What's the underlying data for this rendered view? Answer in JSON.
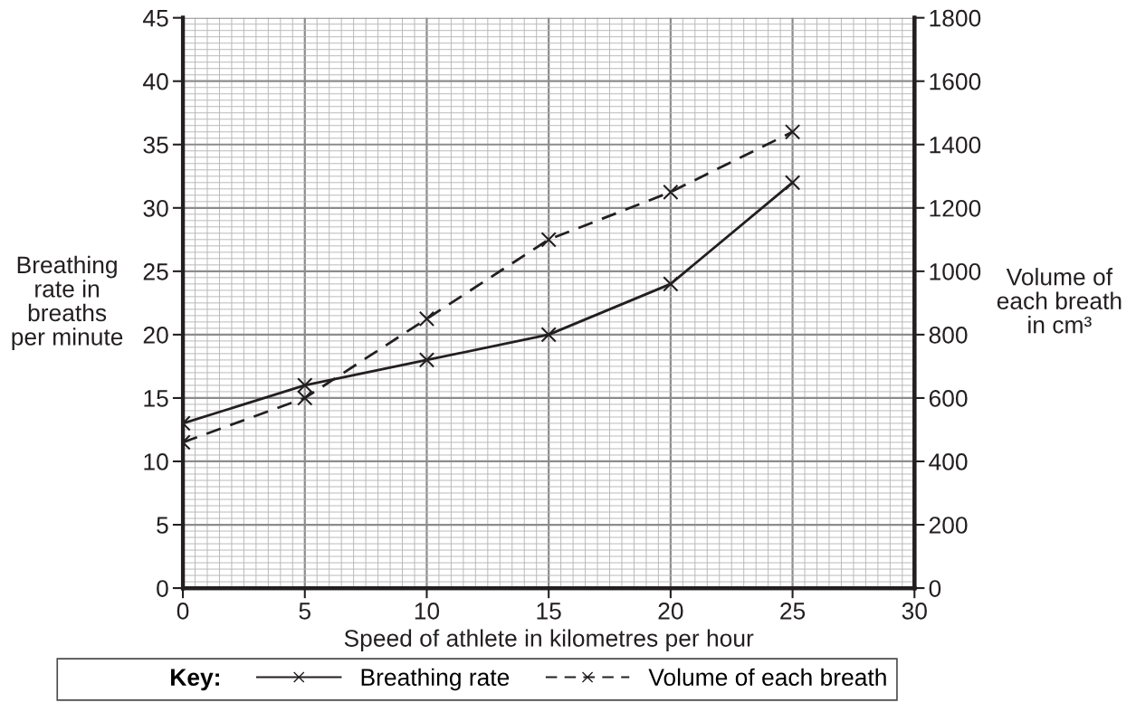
{
  "chart_data": {
    "type": "line",
    "xlabel": "Speed of athlete in kilometres per hour",
    "ylabel": "Breathing\nrate in\nbreaths\nper minute",
    "y2label": "Volume of\neach breath\nin cm³",
    "legend_title": "Key:",
    "x": [
      0,
      5,
      10,
      15,
      20,
      25
    ],
    "series": [
      {
        "name": "Breathing rate",
        "color": "#231f20",
        "values": [
          13,
          16,
          18,
          20,
          24,
          32
        ],
        "line_style": "solid"
      },
      {
        "name": "Volume of each breath",
        "color": "#231f20",
        "values": [
          460,
          600,
          850,
          1100,
          1250,
          1440
        ],
        "line_style": "dashed",
        "axis": "y2"
      }
    ],
    "marker": "cross",
    "xlim": [
      0,
      30
    ],
    "xticks": [
      0,
      5,
      10,
      15,
      20,
      25,
      30
    ],
    "ylim": [
      0,
      45
    ],
    "yticks": [
      0,
      5,
      10,
      15,
      20,
      25,
      30,
      35,
      40,
      45
    ],
    "y2lim": [
      0,
      1800
    ],
    "y2ticks": [
      0,
      200,
      400,
      600,
      800,
      1000,
      1200,
      1400,
      1600,
      1800
    ],
    "grid": true,
    "legend": "bottom"
  }
}
